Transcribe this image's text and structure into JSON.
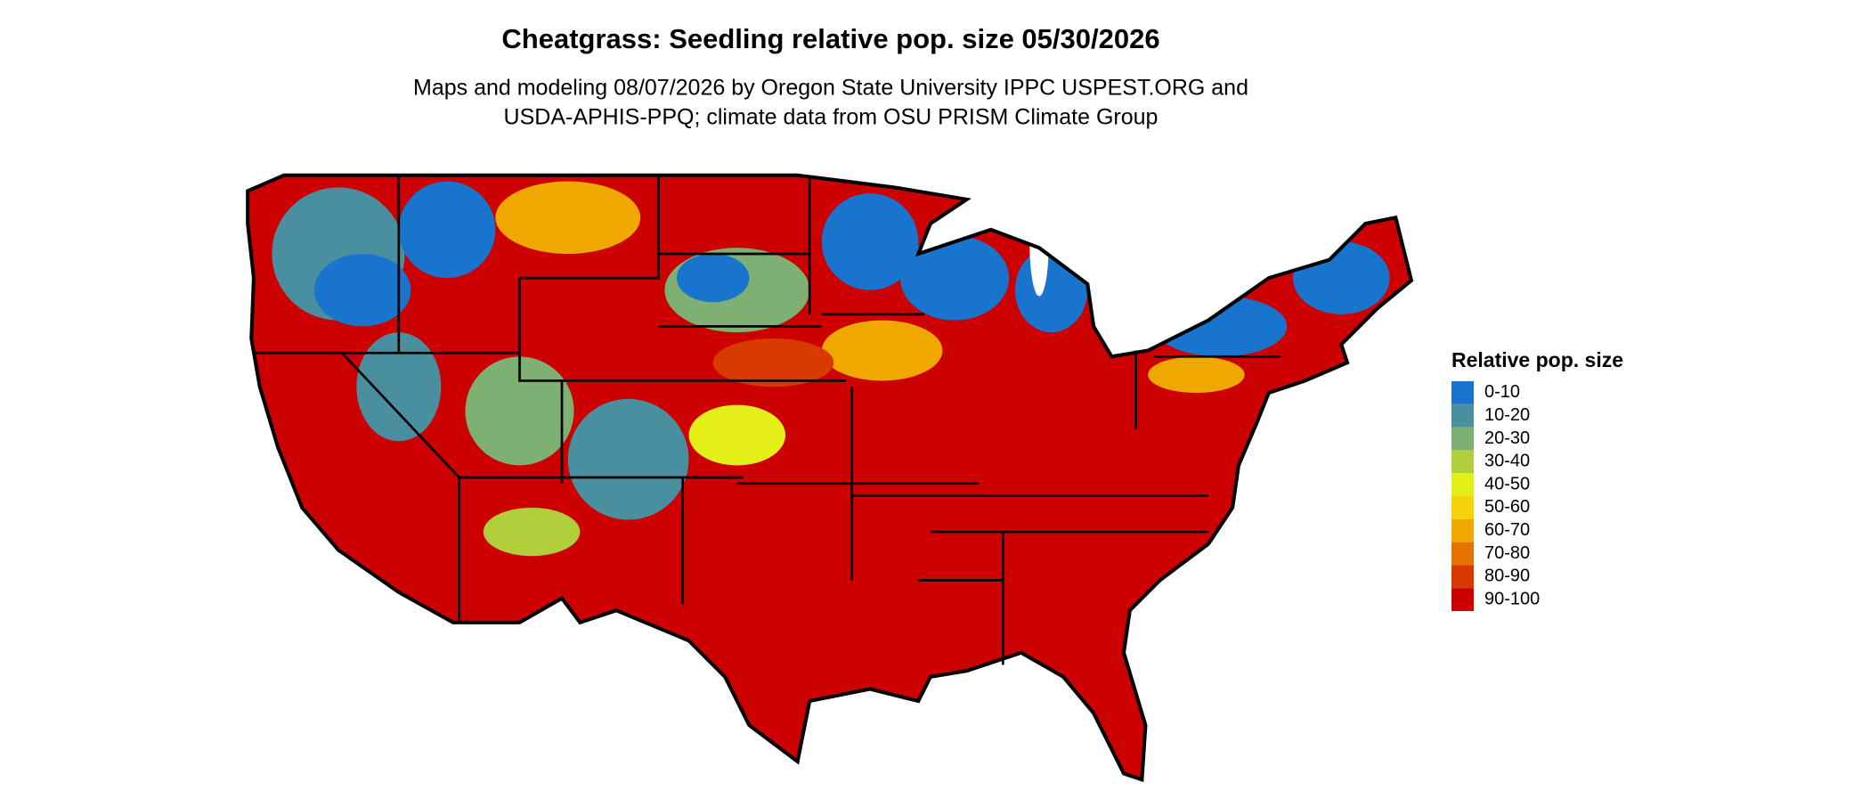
{
  "map": {
    "title": "Cheatgrass: Seedling relative pop. size 05/30/2026",
    "subtitle": [
      "Maps and modeling 08/07/2026 by Oregon State University IPPC USPEST.ORG and",
      "USDA-APHIS-PPQ; climate data from OSU PRISM Climate Group"
    ],
    "legend": {
      "title": "Relative pop. size",
      "items": [
        {
          "label": "0-10",
          "color": "#1874cd"
        },
        {
          "label": "10-20",
          "color": "#4a8fa0"
        },
        {
          "label": "20-30",
          "color": "#7db072"
        },
        {
          "label": "30-40",
          "color": "#b0cf3a"
        },
        {
          "label": "40-50",
          "color": "#e4ef1a"
        },
        {
          "label": "50-60",
          "color": "#f5d20a"
        },
        {
          "label": "60-70",
          "color": "#f0a800"
        },
        {
          "label": "70-80",
          "color": "#e67300"
        },
        {
          "label": "80-90",
          "color": "#d83a00"
        },
        {
          "label": "90-100",
          "color": "#cc0000"
        }
      ]
    }
  }
}
